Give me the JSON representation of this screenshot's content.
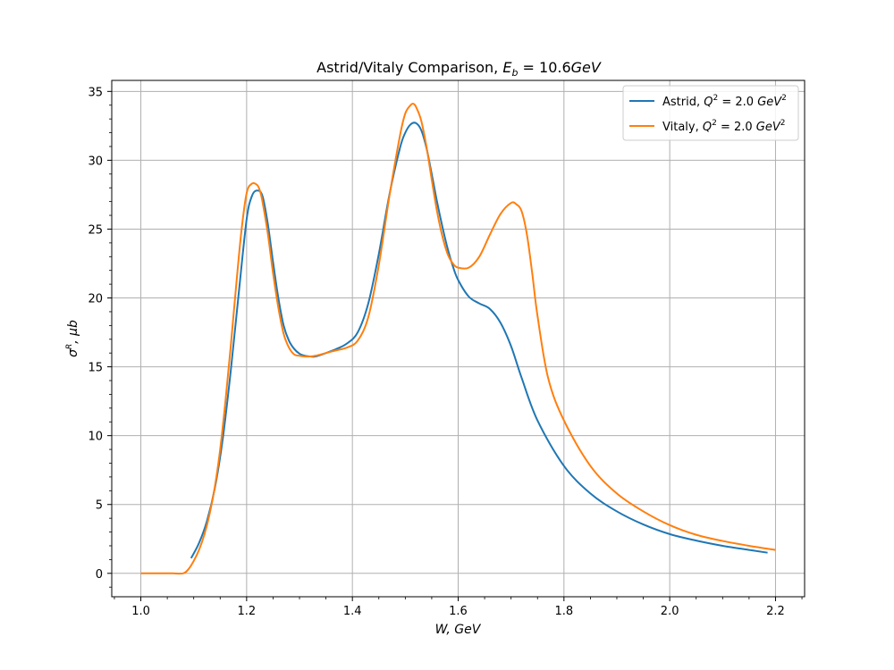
{
  "chart_data": {
    "type": "line",
    "title": "Astrid/Vitaly Comparison, E_b = 10.6GeV",
    "title_parts": [
      "Astrid/Vitaly Comparison, ",
      "E",
      "b",
      " = 10.6",
      "GeV"
    ],
    "xlabel": "W, GeV",
    "ylabel": "σ^R, μb",
    "xlim": [
      0.945,
      2.255
    ],
    "ylim": [
      -1.7,
      35.8
    ],
    "xticks": [
      1.0,
      1.2,
      1.4,
      1.6,
      1.8,
      2.0,
      2.2
    ],
    "xtick_labels": [
      "1.0",
      "1.2",
      "1.4",
      "1.6",
      "1.8",
      "2.0",
      "2.2"
    ],
    "yticks": [
      0,
      5,
      10,
      15,
      20,
      25,
      30,
      35
    ],
    "ytick_labels": [
      "0",
      "5",
      "10",
      "15",
      "20",
      "25",
      "30",
      "35"
    ],
    "grid": true,
    "legend_position": "top-right",
    "series": [
      {
        "name": "Astrid, Q^2 = 2.0 GeV^2",
        "legend_parts": [
          "Astrid, ",
          "Q",
          "2",
          " = 2.0 ",
          "GeV",
          "2"
        ],
        "color": "#1f77b4",
        "x": [
          1.095,
          1.11,
          1.125,
          1.14,
          1.155,
          1.17,
          1.185,
          1.2,
          1.21,
          1.22,
          1.23,
          1.24,
          1.25,
          1.26,
          1.27,
          1.28,
          1.29,
          1.3,
          1.31,
          1.32,
          1.33,
          1.35,
          1.37,
          1.39,
          1.41,
          1.43,
          1.45,
          1.47,
          1.49,
          1.5,
          1.51,
          1.52,
          1.53,
          1.54,
          1.55,
          1.56,
          1.57,
          1.58,
          1.59,
          1.6,
          1.62,
          1.64,
          1.66,
          1.68,
          1.7,
          1.72,
          1.75,
          1.8,
          1.85,
          1.9,
          1.95,
          2.0,
          2.05,
          2.1,
          2.15,
          2.185
        ],
        "y": [
          1.1,
          2.2,
          3.8,
          6.2,
          9.8,
          14.7,
          20.3,
          25.7,
          27.4,
          27.8,
          27.4,
          25.4,
          22.6,
          20.0,
          18.0,
          16.9,
          16.3,
          15.95,
          15.8,
          15.75,
          15.75,
          16.0,
          16.3,
          16.7,
          17.5,
          19.6,
          23.2,
          27.5,
          30.9,
          32.0,
          32.6,
          32.7,
          32.2,
          30.9,
          29.0,
          27.0,
          25.2,
          23.6,
          22.3,
          21.3,
          20.1,
          19.6,
          19.2,
          18.2,
          16.5,
          14.2,
          11.1,
          7.8,
          5.8,
          4.5,
          3.55,
          2.85,
          2.38,
          2.0,
          1.7,
          1.5
        ]
      },
      {
        "name": "Vitaly, Q^2 = 2.0 GeV^2",
        "legend_parts": [
          "Vitaly, ",
          "Q",
          "2",
          " = 2.0 ",
          "GeV",
          "2"
        ],
        "color": "#ff7f0e",
        "x": [
          1.0,
          1.02,
          1.04,
          1.06,
          1.08,
          1.09,
          1.1,
          1.11,
          1.12,
          1.13,
          1.14,
          1.15,
          1.16,
          1.17,
          1.18,
          1.19,
          1.2,
          1.21,
          1.22,
          1.225,
          1.23,
          1.24,
          1.25,
          1.26,
          1.27,
          1.28,
          1.29,
          1.3,
          1.31,
          1.32,
          1.33,
          1.35,
          1.37,
          1.39,
          1.41,
          1.43,
          1.45,
          1.47,
          1.49,
          1.5,
          1.51,
          1.515,
          1.52,
          1.53,
          1.54,
          1.55,
          1.56,
          1.57,
          1.58,
          1.59,
          1.6,
          1.62,
          1.64,
          1.66,
          1.68,
          1.7,
          1.71,
          1.72,
          1.73,
          1.74,
          1.75,
          1.77,
          1.8,
          1.85,
          1.9,
          1.95,
          2.0,
          2.05,
          2.1,
          2.15,
          2.2
        ],
        "y": [
          0,
          0,
          0,
          0,
          0,
          0.3,
          0.9,
          1.7,
          2.8,
          4.3,
          6.3,
          9.0,
          12.5,
          16.5,
          20.8,
          24.8,
          27.6,
          28.3,
          28.2,
          27.8,
          27.0,
          24.7,
          21.8,
          19.3,
          17.4,
          16.4,
          15.9,
          15.8,
          15.75,
          15.75,
          15.8,
          16.0,
          16.2,
          16.4,
          16.9,
          18.6,
          22.4,
          27.4,
          31.8,
          33.4,
          34.0,
          34.1,
          33.9,
          32.9,
          31.0,
          28.6,
          26.3,
          24.5,
          23.2,
          22.5,
          22.2,
          22.2,
          23.0,
          24.6,
          26.1,
          26.9,
          26.8,
          26.3,
          24.6,
          21.8,
          18.7,
          14.2,
          11.1,
          7.8,
          5.8,
          4.5,
          3.5,
          2.8,
          2.35,
          2.0,
          1.7
        ]
      }
    ]
  }
}
